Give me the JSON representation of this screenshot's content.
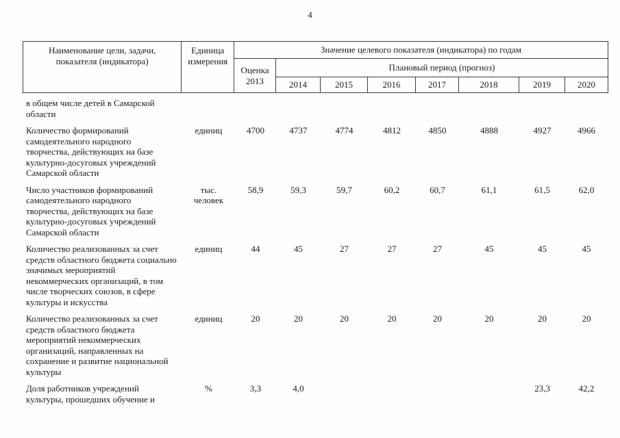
{
  "page": {
    "number": "4"
  },
  "table": {
    "header": {
      "col_name": "Наименование цели, задачи, показателя (индикатора)",
      "col_unit": "Единица измерения",
      "col_values": "Значение целевого показателя (индикатора) по годам",
      "col_estimate": "Оценка 2013",
      "col_plan": "Плановый период (прогноз)",
      "years": [
        "2014",
        "2015",
        "2016",
        "2017",
        "2018",
        "2019",
        "2020"
      ]
    },
    "rows": [
      {
        "name": "в общем числе детей в Самарской области",
        "unit": "",
        "values": [
          "",
          "",
          "",
          "",
          "",
          "",
          "",
          ""
        ]
      },
      {
        "name": "Количество формирований самодеятельного народного творчества, действующих на базе культурно-досуговых учреждений Самарской области",
        "unit": "единиц",
        "values": [
          "4700",
          "4737",
          "4774",
          "4812",
          "4850",
          "4888",
          "4927",
          "4966"
        ]
      },
      {
        "name": "Число участников формирований самодеятельного народного творчества, действующих на базе культурно-досуговых учреждений Самарской области",
        "unit": "тыс. человек",
        "values": [
          "58,9",
          "59,3",
          "59,7",
          "60,2",
          "60,7",
          "61,1",
          "61,5",
          "62,0"
        ]
      },
      {
        "name": "Количество реализованных за счет средств областного бюджета социально значимых мероприятий некоммерческих организаций, в том числе творческих союзов, в сфере культуры и искусства",
        "unit": "единиц",
        "values": [
          "44",
          "45",
          "27",
          "27",
          "27",
          "45",
          "45",
          "45"
        ]
      },
      {
        "name": "Количество реализованных за счет средств областного бюджета мероприятий некоммерческих организаций, направленных на сохранение и развитие национальной культуры",
        "unit": "единиц",
        "values": [
          "20",
          "20",
          "20",
          "20",
          "20",
          "20",
          "20",
          "20"
        ]
      },
      {
        "name": "Доля работников учреждений культуры, прошедших обучение и",
        "unit": "%",
        "values": [
          "3,3",
          "4,0",
          "",
          "",
          "",
          "",
          "23,3",
          "42,2"
        ]
      }
    ]
  }
}
